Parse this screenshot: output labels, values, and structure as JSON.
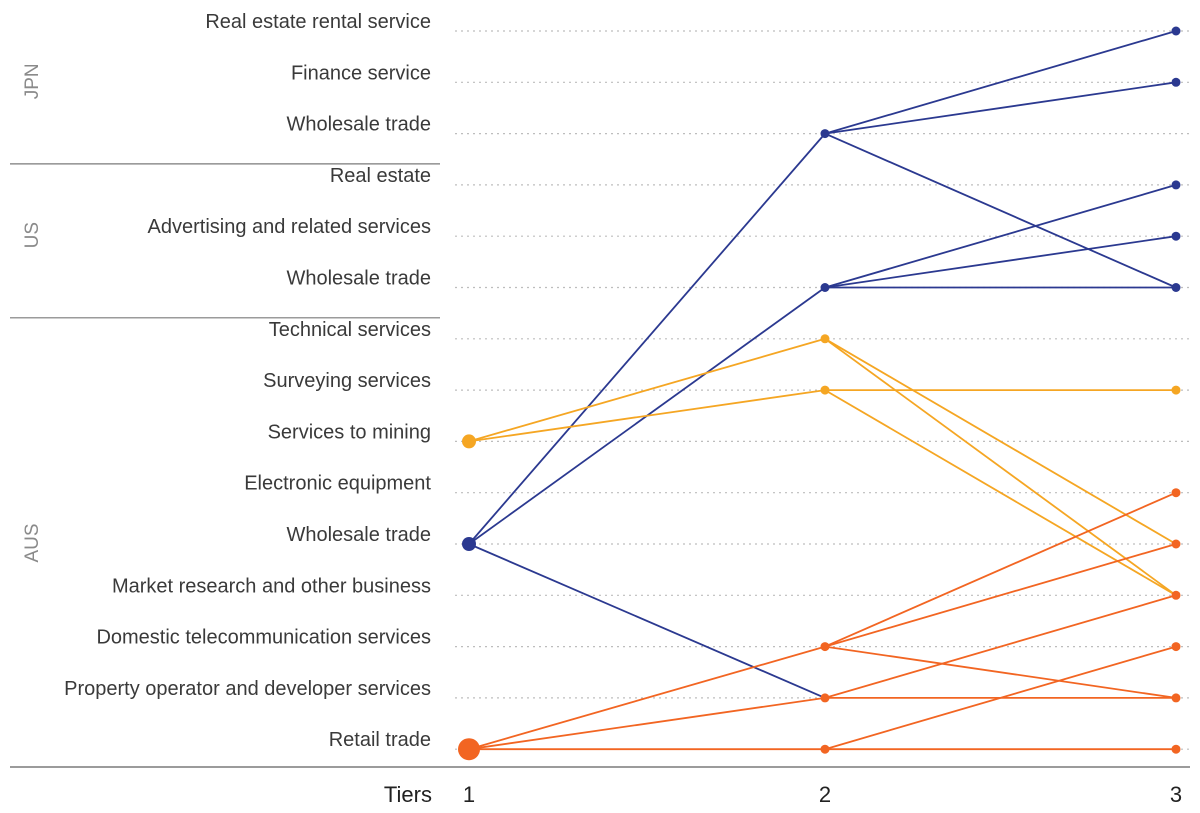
{
  "chart_data": {
    "type": "line",
    "title": "",
    "xlabel": "Tiers",
    "ylabel": "",
    "x_ticks": [
      "1",
      "2",
      "3"
    ],
    "rows": [
      "Real estate rental service",
      "Finance service",
      "Wholesale trade",
      "Real estate",
      "Advertising and related services",
      "Wholesale trade",
      "Technical services",
      "Surveying services",
      "Services to mining",
      "Electronic equipment",
      "Wholesale trade",
      "Market research and other business",
      "Domestic telecommunication services",
      "Property operator and developer services",
      "Retail trade"
    ],
    "groups": [
      {
        "label": "JPN",
        "rows": [
          0,
          2
        ]
      },
      {
        "label": "US",
        "rows": [
          3,
          5
        ]
      },
      {
        "label": "AUS",
        "rows": [
          6,
          14
        ]
      }
    ],
    "colors": {
      "navy": "#2b3990",
      "amber": "#f5a623",
      "orange": "#f26522"
    },
    "links": [
      {
        "color": "navy",
        "from": [
          1,
          10
        ],
        "to": [
          2,
          2
        ]
      },
      {
        "color": "navy",
        "from": [
          1,
          10
        ],
        "to": [
          2,
          5
        ]
      },
      {
        "color": "navy",
        "from": [
          1,
          10
        ],
        "to": [
          2,
          13
        ]
      },
      {
        "color": "navy",
        "from": [
          2,
          2
        ],
        "to": [
          3,
          0
        ]
      },
      {
        "color": "navy",
        "from": [
          2,
          2
        ],
        "to": [
          3,
          1
        ]
      },
      {
        "color": "navy",
        "from": [
          2,
          2
        ],
        "to": [
          3,
          5
        ]
      },
      {
        "color": "navy",
        "from": [
          2,
          5
        ],
        "to": [
          3,
          3
        ]
      },
      {
        "color": "navy",
        "from": [
          2,
          5
        ],
        "to": [
          3,
          4
        ]
      },
      {
        "color": "navy",
        "from": [
          2,
          5
        ],
        "to": [
          3,
          5
        ]
      },
      {
        "color": "amber",
        "from": [
          1,
          8
        ],
        "to": [
          2,
          6
        ]
      },
      {
        "color": "amber",
        "from": [
          1,
          8
        ],
        "to": [
          2,
          7
        ]
      },
      {
        "color": "amber",
        "from": [
          2,
          6
        ],
        "to": [
          3,
          10
        ]
      },
      {
        "color": "amber",
        "from": [
          2,
          6
        ],
        "to": [
          3,
          11
        ]
      },
      {
        "color": "amber",
        "from": [
          2,
          7
        ],
        "to": [
          3,
          7
        ]
      },
      {
        "color": "amber",
        "from": [
          2,
          7
        ],
        "to": [
          3,
          11
        ]
      },
      {
        "color": "orange",
        "from": [
          1,
          14
        ],
        "to": [
          2,
          12
        ]
      },
      {
        "color": "orange",
        "from": [
          1,
          14
        ],
        "to": [
          2,
          13
        ]
      },
      {
        "color": "orange",
        "from": [
          1,
          14
        ],
        "to": [
          2,
          14
        ]
      },
      {
        "color": "orange",
        "from": [
          2,
          12
        ],
        "to": [
          3,
          9
        ]
      },
      {
        "color": "orange",
        "from": [
          2,
          12
        ],
        "to": [
          3,
          10
        ]
      },
      {
        "color": "orange",
        "from": [
          2,
          12
        ],
        "to": [
          3,
          13
        ]
      },
      {
        "color": "orange",
        "from": [
          2,
          13
        ],
        "to": [
          3,
          11
        ]
      },
      {
        "color": "orange",
        "from": [
          2,
          13
        ],
        "to": [
          3,
          13
        ]
      },
      {
        "color": "orange",
        "from": [
          2,
          14
        ],
        "to": [
          3,
          12
        ]
      },
      {
        "color": "orange",
        "from": [
          2,
          14
        ],
        "to": [
          3,
          14
        ]
      }
    ],
    "nodes": [
      {
        "tier": 1,
        "row": 8,
        "color": "amber",
        "size": "medium"
      },
      {
        "tier": 1,
        "row": 10,
        "color": "navy",
        "size": "medium"
      },
      {
        "tier": 1,
        "row": 14,
        "color": "orange",
        "size": "large"
      },
      {
        "tier": 2,
        "row": 2,
        "color": "navy",
        "size": "small"
      },
      {
        "tier": 2,
        "row": 5,
        "color": "navy",
        "size": "small"
      },
      {
        "tier": 2,
        "row": 6,
        "color": "amber",
        "size": "small"
      },
      {
        "tier": 2,
        "row": 7,
        "color": "amber",
        "size": "small"
      },
      {
        "tier": 2,
        "row": 12,
        "color": "orange",
        "size": "small"
      },
      {
        "tier": 2,
        "row": 13,
        "color": "orange",
        "size": "small"
      },
      {
        "tier": 2,
        "row": 14,
        "color": "orange",
        "size": "small"
      },
      {
        "tier": 3,
        "row": 0,
        "color": "navy",
        "size": "small"
      },
      {
        "tier": 3,
        "row": 1,
        "color": "navy",
        "size": "small"
      },
      {
        "tier": 3,
        "row": 3,
        "color": "navy",
        "size": "small"
      },
      {
        "tier": 3,
        "row": 4,
        "color": "navy",
        "size": "small"
      },
      {
        "tier": 3,
        "row": 5,
        "color": "navy",
        "size": "small"
      },
      {
        "tier": 3,
        "row": 7,
        "color": "amber",
        "size": "small"
      },
      {
        "tier": 3,
        "row": 9,
        "color": "orange",
        "size": "small"
      },
      {
        "tier": 3,
        "row": 10,
        "color": "orange",
        "size": "small"
      },
      {
        "tier": 3,
        "row": 11,
        "color": "orange",
        "size": "small"
      },
      {
        "tier": 3,
        "row": 12,
        "color": "orange",
        "size": "small"
      },
      {
        "tier": 3,
        "row": 13,
        "color": "orange",
        "size": "small"
      },
      {
        "tier": 3,
        "row": 14,
        "color": "orange",
        "size": "small"
      }
    ]
  }
}
